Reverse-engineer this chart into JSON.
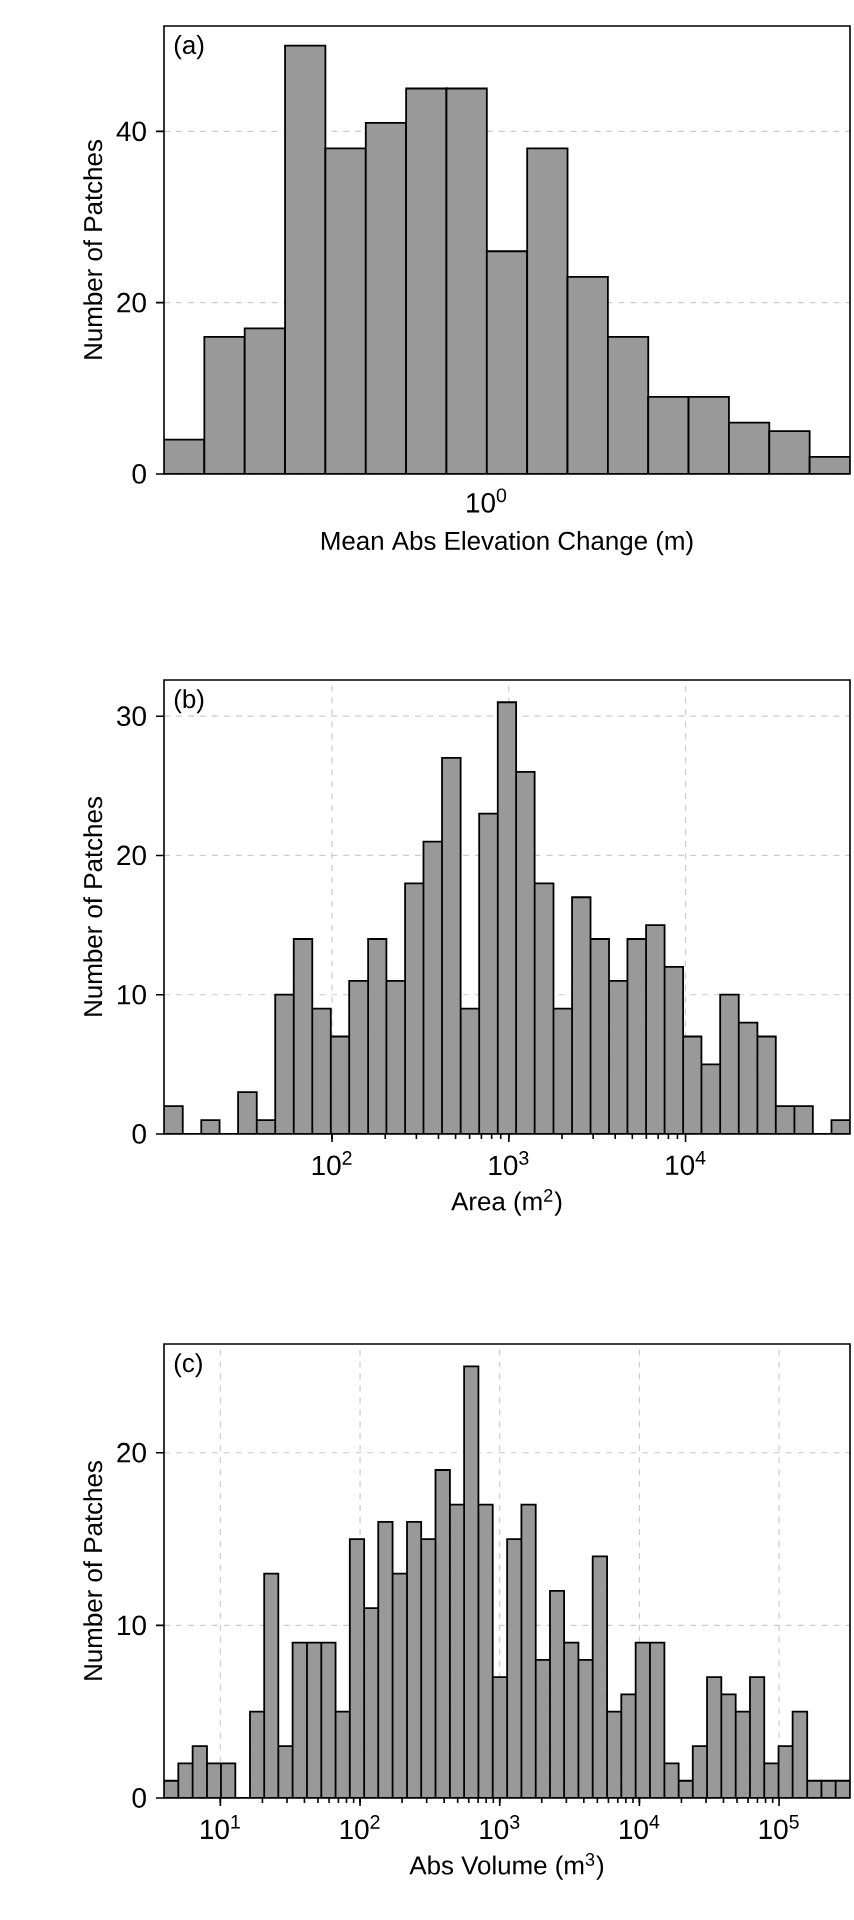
{
  "chart_data": [
    {
      "type": "bar",
      "annotations": [
        "(a)",
        "10$^{0}$"
      ],
      "xlabel": "Mean Abs Elevation Change (m)",
      "ylabel": "Number of Patches",
      "color": "#999999",
      "grid": "y",
      "categories": [
        null,
        null,
        null,
        null,
        null,
        null,
        null,
        null,
        null,
        null,
        null,
        null,
        null,
        null,
        null,
        null,
        null
      ],
      "values": [
        4,
        16,
        17,
        50,
        38,
        41,
        45,
        45,
        26,
        38,
        23,
        16,
        9,
        9,
        6,
        5,
        2
      ],
      "ylim": [
        0,
        52.3
      ],
      "yticks": [
        0,
        20,
        40
      ]
    },
    {
      "type": "histogram",
      "annotations": [
        "(b)"
      ],
      "xlabel": "Area (m$^{2}$)",
      "ylabel": "Number of Patches",
      "color": "#999999",
      "log": "x",
      "grid": true,
      "bins": [
        11.2,
        14.3,
        18.2,
        23.1,
        29.4,
        37.5,
        47.7,
        60.7,
        77.3,
        98.4,
        125,
        160,
        203,
        259,
        329,
        419,
        534,
        680,
        866,
        1100,
        1400,
        1790,
        2280,
        2900,
        3690,
        4690,
        5980,
        7610,
        9690,
        12300,
        15700,
        20000,
        25500,
        32400,
        41300,
        52500,
        66900,
        85200
      ],
      "values": [
        2,
        0,
        1,
        0,
        3,
        1,
        10,
        14,
        9,
        7,
        11,
        14,
        11,
        18,
        21,
        27,
        9,
        23,
        31,
        26,
        18,
        9,
        17,
        14,
        11,
        14,
        15,
        12,
        7,
        5,
        10,
        8,
        7,
        2,
        2,
        0,
        1
      ],
      "xlim": [
        11.2,
        85200
      ],
      "xticks": [
        {
          "value": 100,
          "label": "10$^{2}$"
        },
        {
          "value": 1000,
          "label": "10$^{3}$"
        },
        {
          "value": 10000,
          "label": "10$^{4}$"
        }
      ],
      "ylim": [
        0,
        32.6
      ],
      "yticks": [
        0,
        10,
        20,
        30
      ]
    },
    {
      "type": "histogram",
      "annotations": [
        "(c)"
      ],
      "xlabel": "Abs Volume (m$^{3}$)",
      "ylabel": "Number of Patches",
      "color": "#999999",
      "log": "x",
      "grid": true,
      "bins": [
        3.95,
        5.0,
        6.33,
        8.02,
        10.1,
        12.8,
        16.3,
        20.6,
        26.0,
        32.9,
        41.7,
        52.8,
        66.8,
        84.5,
        107,
        135,
        171,
        217,
        274,
        347,
        440,
        556,
        704,
        891,
        1130,
        1430,
        1810,
        2290,
        2890,
        3660,
        4630,
        5870,
        7420,
        9400,
        11900,
        15100,
        19100,
        24100,
        30500,
        38600,
        48900,
        61900,
        78300,
        99100,
        125000,
        159000,
        201000,
        254000,
        322000
      ],
      "values": [
        1,
        2,
        3,
        2,
        2,
        0,
        5,
        13,
        3,
        9,
        9,
        9,
        5,
        15,
        11,
        16,
        13,
        16,
        15,
        19,
        17,
        25,
        17,
        7,
        15,
        17,
        8,
        12,
        9,
        8,
        14,
        5,
        6,
        9,
        9,
        2,
        1,
        3,
        7,
        6,
        5,
        7,
        2,
        3,
        5,
        1,
        1,
        1
      ],
      "xlim": [
        3.95,
        322000
      ],
      "xticks": [
        {
          "value": 10,
          "label": "10$^{1}$"
        },
        {
          "value": 100,
          "label": "10$^{2}$"
        },
        {
          "value": 1000,
          "label": "10$^{3}$"
        },
        {
          "value": 10000,
          "label": "10$^{4}$"
        },
        {
          "value": 100000,
          "label": "10$^{5}$"
        }
      ],
      "ylim": [
        0,
        26.3
      ],
      "yticks": [
        0,
        10,
        20
      ]
    }
  ]
}
